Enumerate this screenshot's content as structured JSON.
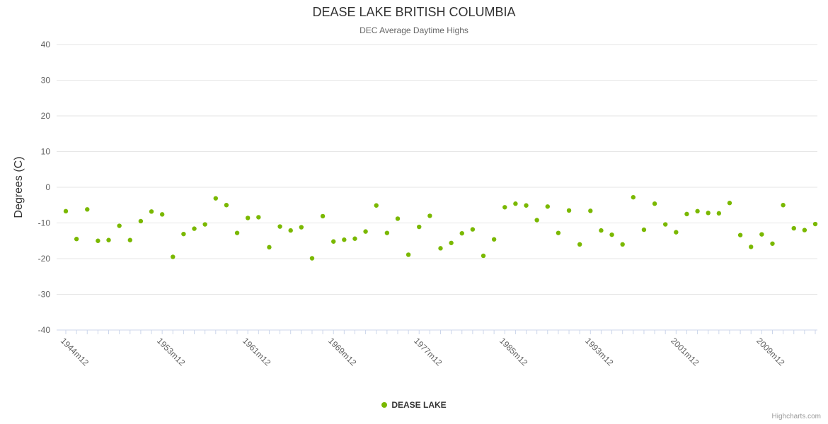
{
  "chart": {
    "title": "DEASE LAKE BRITISH COLUMBIA",
    "subtitle": "DEC Average Daytime Highs",
    "y_axis_title": "Degrees (C)",
    "legend_label": "DEASE LAKE",
    "credits": "Highcharts.com"
  },
  "chart_data": {
    "type": "scatter",
    "title": "DEASE LAKE BRITISH COLUMBIA",
    "subtitle": "DEC Average Daytime Highs",
    "xlabel": "",
    "ylabel": "Degrees (C)",
    "ylim": [
      -40,
      40
    ],
    "yticks": [
      -40,
      -30,
      -20,
      -10,
      0,
      10,
      20,
      30,
      40
    ],
    "grid": true,
    "legend_position": "bottom",
    "xtick_labels": [
      "1944m12",
      "1953m12",
      "1961m12",
      "1969m12",
      "1977m12",
      "1985m12",
      "1993m12",
      "2001m12",
      "2009m12"
    ],
    "xtick_indices": [
      0,
      9,
      17,
      25,
      33,
      41,
      49,
      57,
      65
    ],
    "x_first": "1944m12",
    "series": [
      {
        "name": "DEASE LAKE",
        "color": "#7AB800",
        "values": [
          -6.7,
          -14.5,
          -6.2,
          -15.0,
          -14.8,
          -10.8,
          -14.8,
          -9.5,
          -6.8,
          -7.6,
          -19.5,
          -13.1,
          -11.6,
          -10.4,
          -3.1,
          -5.0,
          -12.8,
          -8.6,
          -8.4,
          -16.8,
          -11.0,
          -12.1,
          -11.2,
          -19.9,
          -8.1,
          -15.2,
          -14.7,
          -14.4,
          -12.4,
          -5.1,
          -12.8,
          -8.8,
          -18.9,
          -11.1,
          -8.0,
          -17.1,
          -15.6,
          -12.9,
          -11.8,
          -19.2,
          -14.6,
          -5.6,
          -4.6,
          -5.1,
          -9.2,
          -5.4,
          -12.8,
          -6.5,
          -16.0,
          -6.6,
          -12.1,
          -13.3,
          -16.0,
          -2.8,
          -11.9,
          -4.6,
          -10.4,
          -12.6,
          -7.5,
          -6.7,
          -7.2,
          -7.3,
          -4.4,
          -13.4,
          -16.7,
          -13.2,
          -15.8,
          -5.0,
          -11.5,
          -12.0,
          -10.3
        ]
      }
    ]
  }
}
